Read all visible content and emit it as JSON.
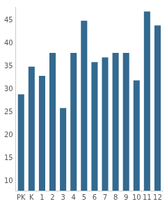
{
  "chart_data": {
    "type": "bar",
    "categories": [
      "PK",
      "K",
      "1",
      "2",
      "3",
      "4",
      "5",
      "6",
      "7",
      "8",
      "9",
      "10",
      "11",
      "12"
    ],
    "values": [
      29,
      35,
      33,
      38,
      26,
      38,
      45,
      36,
      37,
      38,
      38,
      32,
      47,
      44
    ],
    "color": "#336a90",
    "ylim": [
      8,
      48
    ],
    "yticks": [
      10,
      15,
      20,
      25,
      30,
      35,
      40,
      45
    ],
    "grid": false
  }
}
